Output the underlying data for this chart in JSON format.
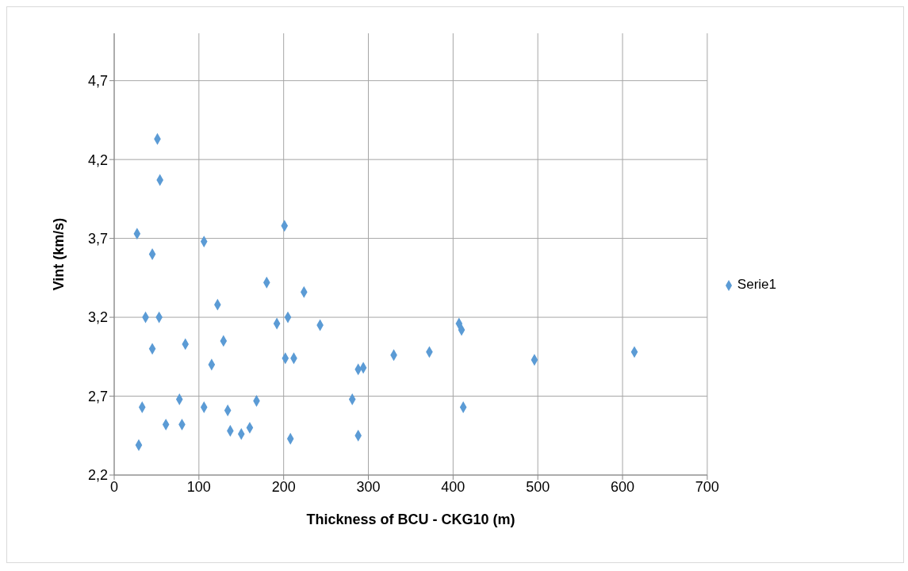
{
  "chart_data": {
    "type": "scatter",
    "xlabel": "Thickness of BCU - CKG10 (m)",
    "ylabel": "Vint (km/s)",
    "xlim": [
      0,
      700
    ],
    "xticks": [
      0,
      100,
      200,
      300,
      400,
      500,
      600,
      700
    ],
    "ylim": [
      2.2,
      5.0
    ],
    "yticks": [
      {
        "value": 2.2,
        "label": "2,2"
      },
      {
        "value": 2.7,
        "label": "2,7"
      },
      {
        "value": 3.2,
        "label": "3,2"
      },
      {
        "value": 3.7,
        "label": "3,7"
      },
      {
        "value": 4.2,
        "label": "4,2"
      },
      {
        "value": 4.7,
        "label": "4,7"
      }
    ],
    "grid": true,
    "legend": "right",
    "marker": "diamond",
    "series": [
      {
        "name": "Serie1",
        "color": "#5b9bd5",
        "x": [
          27,
          51,
          54,
          45,
          106,
          201,
          180,
          122,
          224,
          37,
          53,
          192,
          205,
          243,
          129,
          84,
          45,
          202,
          212,
          115,
          288,
          294,
          330,
          372,
          407,
          410,
          496,
          614,
          33,
          77,
          106,
          134,
          168,
          61,
          80,
          137,
          150,
          160,
          29,
          208,
          281,
          288,
          412
        ],
        "values": [
          3.73,
          4.33,
          4.07,
          3.6,
          3.68,
          3.78,
          3.42,
          3.28,
          3.36,
          3.2,
          3.2,
          3.16,
          3.2,
          3.15,
          3.05,
          3.03,
          3.0,
          2.94,
          2.94,
          2.9,
          2.87,
          2.88,
          2.96,
          2.98,
          3.16,
          3.12,
          2.93,
          2.98,
          2.63,
          2.68,
          2.63,
          2.61,
          2.67,
          2.52,
          2.52,
          2.48,
          2.46,
          2.5,
          2.39,
          2.43,
          2.68,
          2.45,
          2.63
        ]
      }
    ]
  }
}
